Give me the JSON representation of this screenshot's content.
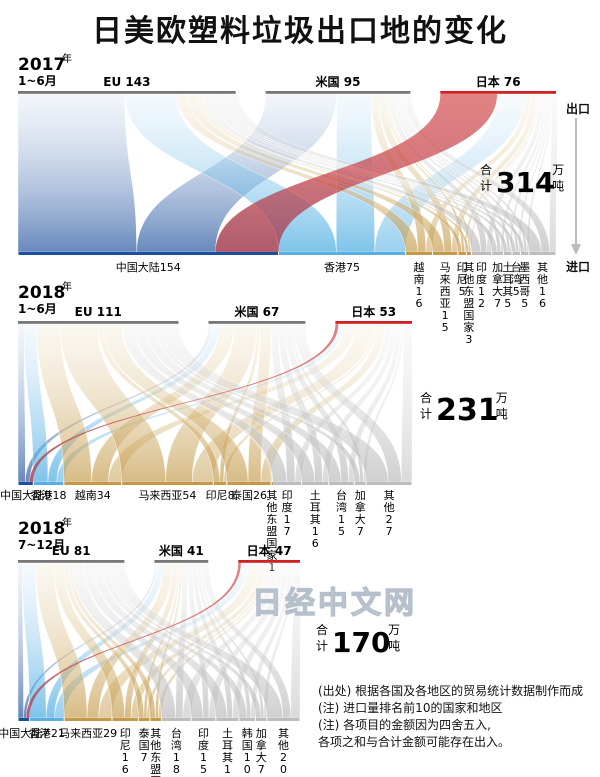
{
  "title": "日美欧塑料垃圾出口地的变化",
  "side_labels": {
    "export": "出口",
    "import": "进口"
  },
  "colors": {
    "eu": "#1c4f9c",
    "us": "#c49a4a",
    "jp": "#d02020",
    "gray": "#bdbdbd"
  },
  "total_label": [
    "合",
    "计"
  ],
  "total_unit": [
    "万",
    "吨"
  ],
  "watermark": "日经中文网",
  "notes": [
    "(出处)  根据各国及各地区的贸易统计数据制作而成",
    "(注)  进口量排名前10的国家和地区",
    "(注)  各项目的金额因为四舍五入,",
    "          各项之和与合计金额可能存在出入。"
  ],
  "chart_data": [
    {
      "type": "sankey",
      "year": "2017",
      "year_suffix": "年",
      "period": "1~6月",
      "total": "314",
      "sources": [
        {
          "name": "EU",
          "value": 143
        },
        {
          "name": "米国",
          "value": 95
        },
        {
          "name": "日本",
          "value": 76
        }
      ],
      "targets": [
        {
          "label": "中国大陆154",
          "value": 154,
          "color": "eu"
        },
        {
          "label": "香港75",
          "value": 75,
          "color": "light"
        },
        {
          "label": "越南16",
          "value": 16,
          "color": "us"
        },
        {
          "label": "马来西亚15",
          "value": 15,
          "color": "us"
        },
        {
          "label": "印尼5",
          "value": 5,
          "color": "us"
        },
        {
          "label": "其他东盟国家3",
          "value": 3,
          "color": "us"
        },
        {
          "label": "印度12",
          "value": 12,
          "color": "gray"
        },
        {
          "label": "加拿大7",
          "value": 7,
          "color": "gray"
        },
        {
          "label": "土耳其5",
          "value": 5,
          "color": "gray"
        },
        {
          "label": "台湾5",
          "value": 5,
          "color": "gray"
        },
        {
          "label": "墨西哥5",
          "value": 5,
          "color": "gray"
        },
        {
          "label": "其他16",
          "value": 16,
          "color": "gray"
        }
      ]
    },
    {
      "type": "sankey",
      "year": "2018",
      "year_suffix": "年",
      "period": "1~6月",
      "total": "231",
      "sources": [
        {
          "name": "EU",
          "value": 111
        },
        {
          "name": "米国",
          "value": 67
        },
        {
          "name": "日本",
          "value": 53
        }
      ],
      "targets": [
        {
          "label": "中国大陆9",
          "value": 9,
          "color": "eu"
        },
        {
          "label": "香港18",
          "value": 18,
          "color": "light"
        },
        {
          "label": "越南34",
          "value": 34,
          "color": "us"
        },
        {
          "label": "马来西亚54",
          "value": 54,
          "color": "us"
        },
        {
          "label": "印尼8",
          "value": 8,
          "color": "us"
        },
        {
          "label": "泰国26",
          "value": 26,
          "color": "us"
        },
        {
          "label": "其他东盟国家1",
          "value": 1,
          "color": "us"
        },
        {
          "label": "印度17",
          "value": 17,
          "color": "gray"
        },
        {
          "label": "土耳其16",
          "value": 16,
          "color": "gray"
        },
        {
          "label": "台湾15",
          "value": 15,
          "color": "gray"
        },
        {
          "label": "加拿大7",
          "value": 7,
          "color": "gray"
        },
        {
          "label": "其他27",
          "value": 27,
          "color": "gray"
        }
      ]
    },
    {
      "type": "sankey",
      "year": "2018",
      "year_suffix": "年",
      "period": "7~12月",
      "total": "170",
      "sources": [
        {
          "name": "EU",
          "value": 81
        },
        {
          "name": "米国",
          "value": 41
        },
        {
          "name": "日本",
          "value": 47
        }
      ],
      "targets": [
        {
          "label": "中国大陆7",
          "value": 7,
          "color": "eu"
        },
        {
          "label": "香港21",
          "value": 21,
          "color": "light"
        },
        {
          "label": "马来西亚29",
          "value": 29,
          "color": "us"
        },
        {
          "label": "印尼16",
          "value": 16,
          "color": "us"
        },
        {
          "label": "泰国7",
          "value": 7,
          "color": "us"
        },
        {
          "label": "其他东盟国家7",
          "value": 7,
          "color": "us"
        },
        {
          "label": "台湾18",
          "value": 18,
          "color": "gray"
        },
        {
          "label": "印度15",
          "value": 15,
          "color": "gray"
        },
        {
          "label": "土耳其14",
          "value": 14,
          "color": "gray"
        },
        {
          "label": "韩国10",
          "value": 10,
          "color": "gray"
        },
        {
          "label": "加拿大7",
          "value": 7,
          "color": "gray"
        },
        {
          "label": "其他20",
          "value": 20,
          "color": "gray"
        }
      ]
    }
  ]
}
